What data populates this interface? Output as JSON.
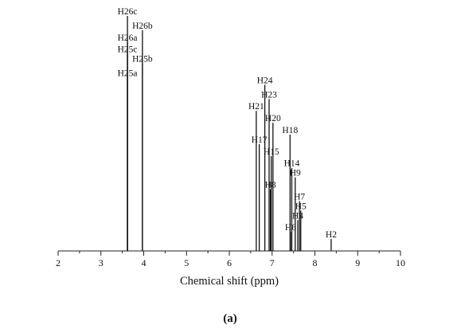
{
  "chart_data": {
    "type": "bar",
    "xlabel": "Chemical shift (ppm)",
    "xlim": [
      2,
      10
    ],
    "ylim": [
      0,
      1
    ],
    "xticks": [
      "2",
      "3",
      "4",
      "5",
      "6",
      "7",
      "8",
      "9",
      "10"
    ],
    "caption": "(a)",
    "peaks": [
      {
        "label": "H26c",
        "x": 3.62,
        "y": 0.99
      },
      {
        "label": "H26b",
        "x": 3.97,
        "y": 0.93
      },
      {
        "label": "H26a",
        "x": 3.62,
        "y": 0.88
      },
      {
        "label": "H25c",
        "x": 3.62,
        "y": 0.83
      },
      {
        "label": "H25b",
        "x": 3.97,
        "y": 0.79
      },
      {
        "label": "H25a",
        "x": 3.62,
        "y": 0.73
      },
      {
        "label": "H24",
        "x": 6.83,
        "y": 0.7
      },
      {
        "label": "H23",
        "x": 6.93,
        "y": 0.64
      },
      {
        "label": "H21",
        "x": 6.63,
        "y": 0.59
      },
      {
        "label": "H20",
        "x": 7.02,
        "y": 0.54
      },
      {
        "label": "H18",
        "x": 7.42,
        "y": 0.49
      },
      {
        "label": "H17",
        "x": 6.7,
        "y": 0.45
      },
      {
        "label": "H15",
        "x": 6.98,
        "y": 0.4
      },
      {
        "label": "H14",
        "x": 7.46,
        "y": 0.35
      },
      {
        "label": "H9",
        "x": 7.54,
        "y": 0.31
      },
      {
        "label": "H8",
        "x": 6.96,
        "y": 0.26
      },
      {
        "label": "H7",
        "x": 7.64,
        "y": 0.21
      },
      {
        "label": "H5",
        "x": 7.67,
        "y": 0.17
      },
      {
        "label": "H4",
        "x": 7.6,
        "y": 0.13
      },
      {
        "label": "H6",
        "x": 7.43,
        "y": 0.08
      },
      {
        "label": "H2",
        "x": 8.38,
        "y": 0.05
      }
    ]
  }
}
